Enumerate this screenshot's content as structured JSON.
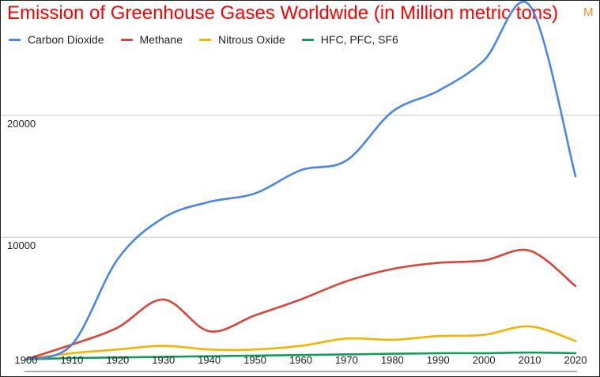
{
  "chart_data": {
    "type": "line",
    "title": "Emission of Greenhouse Gases Worldwide (in Million metric tons)",
    "title_mark": "M",
    "xlabel": "",
    "ylabel": "",
    "x": [
      1900,
      1910,
      1920,
      1930,
      1940,
      1950,
      1960,
      1970,
      1980,
      1990,
      2000,
      2010,
      2020
    ],
    "x_tick_labels": [
      "1900",
      "1910",
      "1920",
      "1930",
      "1940",
      "1950",
      "1960",
      "1970",
      "1980",
      "1990",
      "2000",
      "2010",
      "2020"
    ],
    "y_tick_values": [
      10000,
      20000
    ],
    "y_tick_labels": [
      "10000",
      "20000"
    ],
    "ylim": [
      -1000,
      29000
    ],
    "xlim": [
      1900,
      2020
    ],
    "grid": true,
    "legend_position": "top-left",
    "series": [
      {
        "name": "Carbon Dioxide",
        "color": "#4a86e8",
        "values": [
          0,
          1200,
          8200,
          11600,
          12900,
          13600,
          15500,
          16300,
          20300,
          22000,
          24500,
          29000,
          15000
        ]
      },
      {
        "name": "Methane",
        "color": "#db4437",
        "values": [
          0,
          1200,
          2600,
          4900,
          2300,
          3600,
          4900,
          6400,
          7400,
          7900,
          8100,
          8900,
          6000
        ]
      },
      {
        "name": "Nitrous Oxide",
        "color": "#f4b400",
        "values": [
          0,
          500,
          800,
          1100,
          800,
          800,
          1100,
          1700,
          1600,
          1900,
          2000,
          2700,
          1500
        ]
      },
      {
        "name": "HFC, PFC, SF6",
        "color": "#0f9d58",
        "values": [
          0,
          100,
          150,
          200,
          250,
          300,
          350,
          400,
          450,
          500,
          500,
          550,
          500
        ]
      }
    ]
  }
}
